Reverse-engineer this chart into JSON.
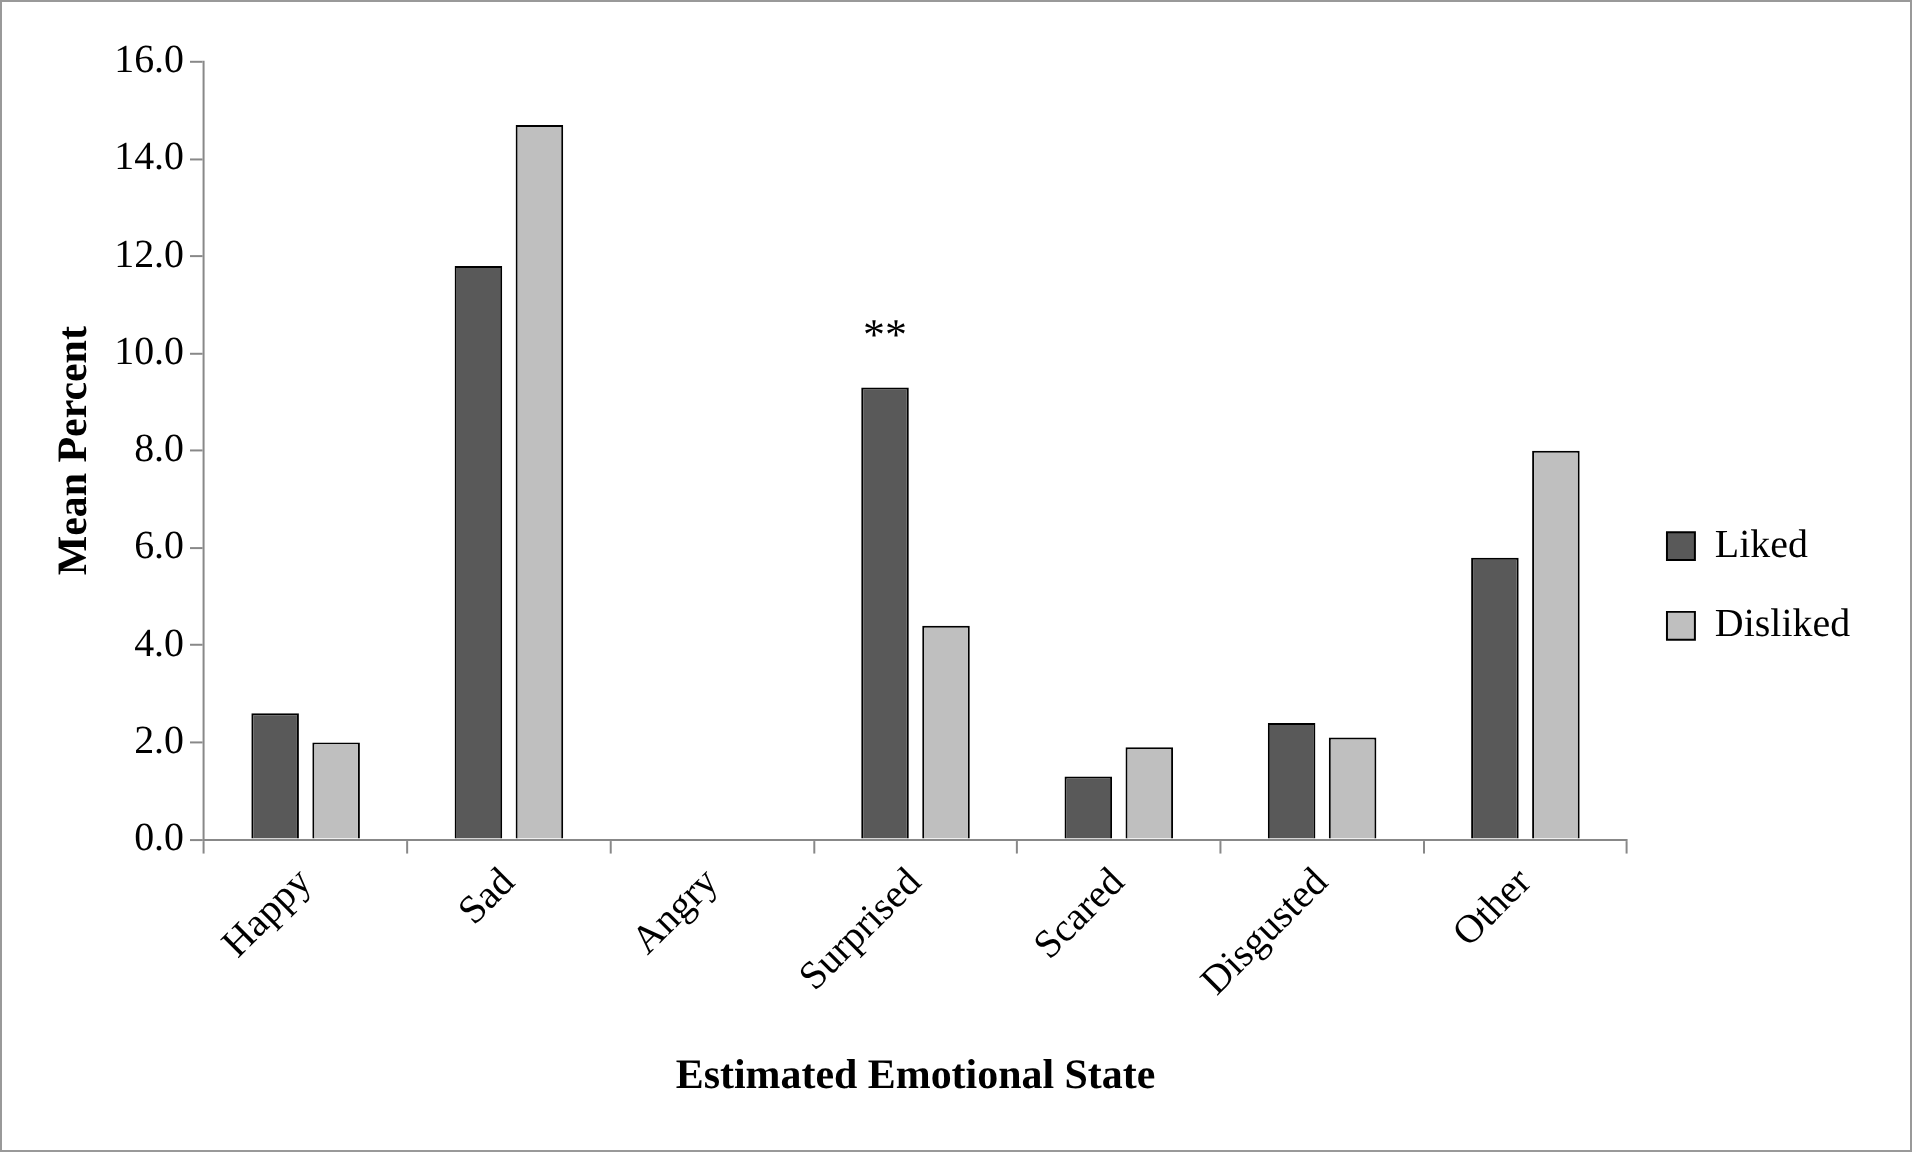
{
  "chart_data": {
    "type": "bar",
    "xlabel": "Estimated Emotional State",
    "ylabel": "Mean Percent",
    "categories": [
      "Happy",
      "Sad",
      "Angry",
      "Surprised",
      "Scared",
      "Disgusted",
      "Other"
    ],
    "series": [
      {
        "name": "Liked",
        "color": "#595959",
        "values": [
          2.6,
          11.8,
          0,
          9.3,
          1.3,
          2.4,
          5.8
        ]
      },
      {
        "name": "Disliked",
        "color": "#bfbfbf",
        "values": [
          2.0,
          14.7,
          0,
          4.4,
          1.9,
          2.1,
          8.0
        ]
      }
    ],
    "ylim": [
      0,
      16
    ],
    "yticks": [
      {
        "value": 0,
        "label": "0.0"
      },
      {
        "value": 2,
        "label": "2.0"
      },
      {
        "value": 4,
        "label": "4.0"
      },
      {
        "value": 6,
        "label": "6.0"
      },
      {
        "value": 8,
        "label": "8.0"
      },
      {
        "value": 10,
        "label": "10.0"
      },
      {
        "value": 12,
        "label": "12.0"
      },
      {
        "value": 14,
        "label": "14.0"
      },
      {
        "value": 16,
        "label": "16.0"
      }
    ],
    "grid": false,
    "legend": "right",
    "annotations": [
      {
        "text": "**",
        "x": "Surprised",
        "y": 9.3
      }
    ]
  }
}
